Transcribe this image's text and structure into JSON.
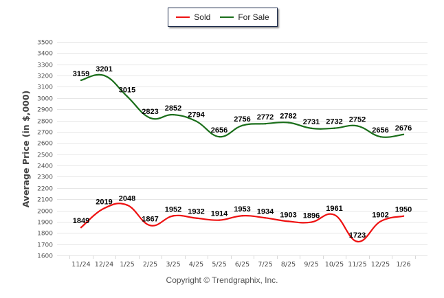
{
  "chart_data": {
    "type": "line",
    "title": "",
    "xlabel": "",
    "ylabel": "Average Price (in $,000)",
    "categories": [
      "11/24",
      "12/24",
      "1/25",
      "2/25",
      "3/25",
      "4/25",
      "5/25",
      "6/25",
      "7/25",
      "8/25",
      "9/25",
      "10/25",
      "11/25",
      "12/25",
      "1/26"
    ],
    "ylim": [
      1600,
      3500
    ],
    "yticks": [
      1600,
      1700,
      1800,
      1900,
      2000,
      2100,
      2200,
      2300,
      2400,
      2500,
      2600,
      2700,
      2800,
      2900,
      3000,
      3100,
      3200,
      3300,
      3400,
      3500
    ],
    "grid": true,
    "legend_position": "top-center",
    "smooth": true,
    "series": [
      {
        "name": "Sold",
        "color": "#ee1111",
        "values": [
          1849,
          2019,
          2048,
          1867,
          1952,
          1932,
          1914,
          1953,
          1934,
          1903,
          1896,
          1961,
          1723,
          1902,
          1950
        ]
      },
      {
        "name": "For Sale",
        "color": "#1a6e1a",
        "values": [
          3159,
          3201,
          3015,
          2823,
          2852,
          2794,
          2656,
          2756,
          2772,
          2782,
          2731,
          2732,
          2752,
          2656,
          2676
        ]
      }
    ]
  },
  "legend": {
    "items": [
      {
        "label": "Sold",
        "color": "#ee1111"
      },
      {
        "label": "For Sale",
        "color": "#1a6e1a"
      }
    ]
  },
  "footer": {
    "copyright": "Copyright © Trendgraphix, Inc."
  }
}
